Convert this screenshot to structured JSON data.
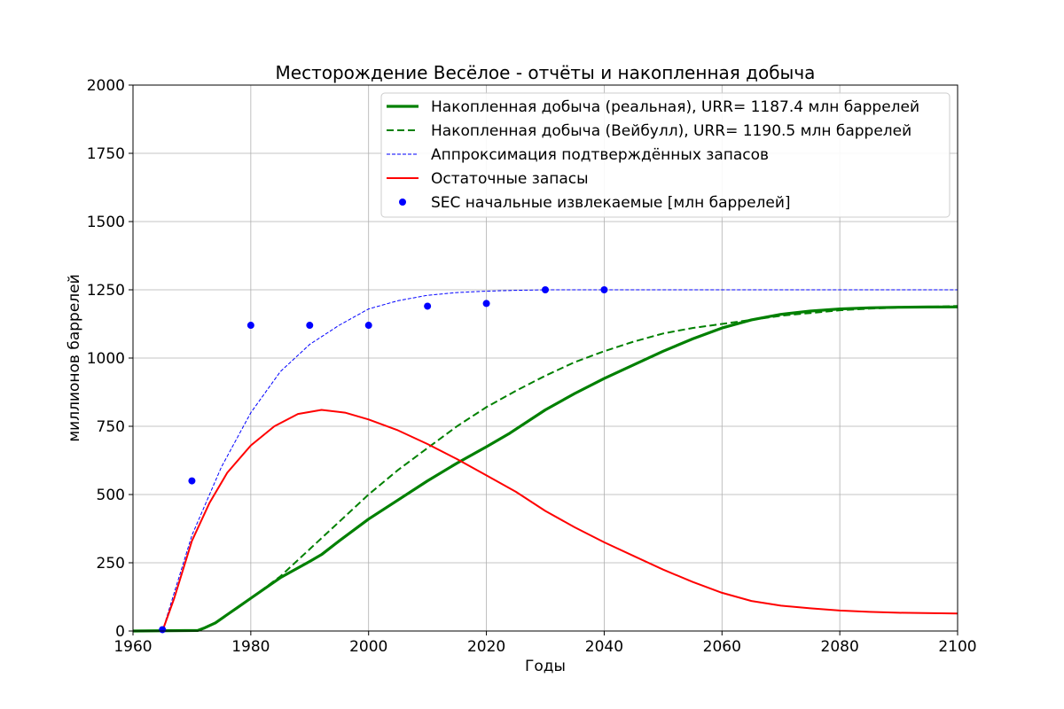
{
  "chart_data": {
    "type": "line",
    "title": "Месторождение Весёлое - отчёты и накопленная добыча",
    "xlabel": "Годы",
    "ylabel": "миллионов баррелей",
    "xlim": [
      1960,
      2100
    ],
    "ylim": [
      0,
      2000
    ],
    "xticks": [
      1960,
      1980,
      2000,
      2020,
      2040,
      2060,
      2080,
      2100
    ],
    "yticks": [
      0,
      250,
      500,
      750,
      1000,
      1250,
      1500,
      1750,
      2000
    ],
    "grid": true,
    "legend_position": "top-right",
    "series": [
      {
        "name": "Накопленная добыча (реальная), URR= 1187.4 млн баррелей",
        "kind": "line",
        "style": "solid-thick",
        "color": "#008000",
        "x": [
          1960,
          1971,
          1972,
          1974,
          1976,
          1978,
          1980,
          1985,
          1990,
          1992,
          1995,
          2000,
          2005,
          2010,
          2015,
          2020,
          2024,
          2030,
          2035,
          2040,
          2045,
          2050,
          2055,
          2060,
          2065,
          2070,
          2075,
          2080,
          2085,
          2090,
          2095,
          2100
        ],
        "y": [
          0,
          2,
          10,
          30,
          60,
          90,
          120,
          195,
          255,
          280,
          330,
          410,
          480,
          550,
          615,
          675,
          725,
          810,
          870,
          925,
          975,
          1025,
          1070,
          1110,
          1140,
          1160,
          1172,
          1180,
          1184,
          1186,
          1187,
          1187.4
        ]
      },
      {
        "name": "Накопленная добыча (Вейбулл), URR= 1190.5 млн баррелей",
        "kind": "line",
        "style": "dashed",
        "color": "#008000",
        "x": [
          1960,
          1971,
          1972,
          1974,
          1976,
          1978,
          1980,
          1985,
          1990,
          1995,
          2000,
          2005,
          2010,
          2015,
          2020,
          2025,
          2030,
          2035,
          2040,
          2045,
          2050,
          2055,
          2060,
          2065,
          2070,
          2075,
          2080,
          2085,
          2090,
          2100
        ],
        "y": [
          0,
          2,
          10,
          30,
          60,
          90,
          120,
          200,
          300,
          400,
          500,
          590,
          670,
          750,
          820,
          880,
          935,
          985,
          1025,
          1060,
          1090,
          1110,
          1125,
          1140,
          1155,
          1165,
          1175,
          1181,
          1185,
          1190.5
        ]
      },
      {
        "name": "Аппроксимация подтверждённых запасов",
        "kind": "line",
        "style": "dashed-thin",
        "color": "#0000ff",
        "x": [
          1965,
          1970,
          1975,
          1980,
          1985,
          1990,
          1995,
          2000,
          2005,
          2010,
          2015,
          2020,
          2025,
          2030,
          2040,
          2060,
          2080,
          2100
        ],
        "y": [
          0,
          350,
          600,
          800,
          950,
          1050,
          1120,
          1180,
          1210,
          1230,
          1240,
          1245,
          1248,
          1250,
          1250,
          1250,
          1250,
          1250
        ]
      },
      {
        "name": "Остаточные запасы",
        "kind": "line",
        "style": "solid",
        "color": "#ff0000",
        "x": [
          1965,
          1967,
          1970,
          1973,
          1976,
          1980,
          1984,
          1988,
          1992,
          1996,
          2000,
          2005,
          2010,
          2015,
          2020,
          2025,
          2030,
          2035,
          2040,
          2045,
          2050,
          2055,
          2060,
          2065,
          2070,
          2075,
          2080,
          2085,
          2090,
          2100
        ],
        "y": [
          0,
          120,
          330,
          470,
          580,
          680,
          750,
          795,
          810,
          800,
          775,
          735,
          685,
          630,
          570,
          510,
          440,
          380,
          325,
          275,
          225,
          180,
          140,
          110,
          93,
          83,
          75,
          70,
          67,
          64
        ]
      },
      {
        "name": "SEC начальные извлекаемые [млн баррелей]",
        "kind": "scatter",
        "style": "dot",
        "color": "#0000ff",
        "x": [
          1965,
          1970,
          1980,
          1990,
          2000,
          2010,
          2020,
          2030,
          2040
        ],
        "y": [
          5,
          550,
          1120,
          1120,
          1120,
          1190,
          1200,
          1250,
          1250
        ]
      }
    ]
  }
}
